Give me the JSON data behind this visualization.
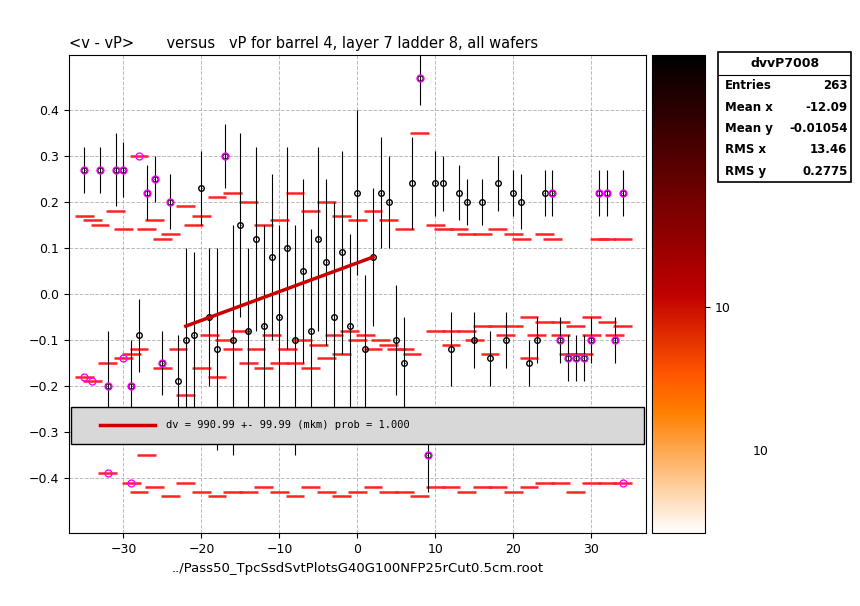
{
  "title": "<v - vP>       versus   vP for barrel 4, layer 7 ladder 8, all wafers",
  "xlabel": "../Pass50_TpcSsdSvtPlotsG40G100NFP25rCut0.5cm.root",
  "stats_title": "dvvP7008",
  "stats": {
    "Entries": "263",
    "Mean x": "-12.09",
    "Mean y": "-0.01054",
    "RMS x": "13.46",
    "RMS y": "0.2775"
  },
  "legend_text": "dv = 990.99 +- 99.99 (mkm) prob = 1.000",
  "xlim": [
    -37,
    37
  ],
  "ylim": [
    -0.52,
    0.52
  ],
  "yticks": [
    -0.4,
    -0.3,
    -0.2,
    -0.1,
    0.0,
    0.1,
    0.2,
    0.3,
    0.4
  ],
  "xticks": [
    -30,
    -20,
    -10,
    0,
    10,
    20,
    30
  ],
  "fit_x": [
    -22,
    2
  ],
  "fit_y": [
    -0.07,
    0.08
  ],
  "bg_color": "#ffffff",
  "plot_bg_color": "#ffffff",
  "legend_bg_color": "#d8d8d8",
  "grid_color": "#aaaaaa",
  "error_color_red": "#ff2222",
  "fit_line_color": "#cc0000",
  "points": [
    [
      -35,
      0.27,
      0.05,
      0.03
    ],
    [
      -33,
      0.27,
      0.05,
      0.03
    ],
    [
      -32,
      -0.2,
      0.12,
      0.04
    ],
    [
      -31,
      0.27,
      0.08,
      0.03
    ],
    [
      -30,
      0.27,
      0.06,
      0.03
    ],
    [
      -29,
      -0.2,
      0.1,
      0.04
    ],
    [
      -28,
      -0.09,
      0.08,
      0.04
    ],
    [
      -27,
      0.22,
      0.06,
      0.03
    ],
    [
      -26,
      0.25,
      0.05,
      0.03
    ],
    [
      -25,
      -0.15,
      0.07,
      0.04
    ],
    [
      -24,
      0.2,
      0.06,
      0.03
    ],
    [
      -23,
      -0.19,
      0.1,
      0.04
    ],
    [
      -22,
      -0.1,
      0.2,
      0.05
    ],
    [
      -21,
      -0.09,
      0.18,
      0.05
    ],
    [
      -20,
      0.23,
      0.08,
      0.04
    ],
    [
      -19,
      -0.05,
      0.15,
      0.04
    ],
    [
      -18,
      -0.12,
      0.22,
      0.05
    ],
    [
      -17,
      0.3,
      0.07,
      0.03
    ],
    [
      -16,
      -0.1,
      0.25,
      0.05
    ],
    [
      -15,
      0.15,
      0.2,
      0.05
    ],
    [
      -14,
      -0.08,
      0.18,
      0.05
    ],
    [
      -13,
      0.12,
      0.2,
      0.04
    ],
    [
      -12,
      -0.07,
      0.22,
      0.05
    ],
    [
      -11,
      0.08,
      0.18,
      0.04
    ],
    [
      -10,
      -0.05,
      0.2,
      0.04
    ],
    [
      -9,
      0.1,
      0.22,
      0.05
    ],
    [
      -8,
      -0.1,
      0.25,
      0.05
    ],
    [
      -7,
      0.05,
      0.2,
      0.04
    ],
    [
      -6,
      -0.08,
      0.22,
      0.05
    ],
    [
      -5,
      0.12,
      0.2,
      0.04
    ],
    [
      -4,
      0.07,
      0.18,
      0.04
    ],
    [
      -3,
      -0.05,
      0.25,
      0.05
    ],
    [
      -2,
      0.09,
      0.22,
      0.04
    ],
    [
      -1,
      -0.07,
      0.2,
      0.04
    ],
    [
      0,
      0.22,
      0.18,
      0.04
    ],
    [
      1,
      -0.12,
      0.16,
      0.04
    ],
    [
      2,
      0.08,
      0.15,
      0.04
    ],
    [
      3,
      0.22,
      0.12,
      0.04
    ],
    [
      4,
      0.2,
      0.1,
      0.04
    ],
    [
      5,
      -0.1,
      0.12,
      0.04
    ],
    [
      6,
      -0.15,
      0.1,
      0.04
    ],
    [
      7,
      0.24,
      0.1,
      0.04
    ],
    [
      8,
      0.47,
      0.06,
      0.03
    ],
    [
      9,
      -0.35,
      0.08,
      0.04
    ],
    [
      10,
      0.24,
      0.07,
      0.03
    ],
    [
      11,
      0.24,
      0.06,
      0.03
    ],
    [
      12,
      -0.12,
      0.08,
      0.04
    ],
    [
      13,
      0.22,
      0.06,
      0.03
    ],
    [
      14,
      0.2,
      0.05,
      0.03
    ],
    [
      15,
      -0.1,
      0.06,
      0.04
    ],
    [
      16,
      0.2,
      0.05,
      0.03
    ],
    [
      17,
      -0.14,
      0.06,
      0.04
    ],
    [
      18,
      0.24,
      0.06,
      0.03
    ],
    [
      19,
      -0.1,
      0.06,
      0.04
    ],
    [
      20,
      0.22,
      0.05,
      0.03
    ],
    [
      21,
      0.2,
      0.06,
      0.03
    ],
    [
      22,
      -0.15,
      0.05,
      0.04
    ],
    [
      23,
      -0.1,
      0.05,
      0.04
    ],
    [
      24,
      0.22,
      0.05,
      0.03
    ],
    [
      25,
      0.22,
      0.05,
      0.03
    ],
    [
      26,
      -0.1,
      0.05,
      0.04
    ],
    [
      27,
      -0.14,
      0.05,
      0.04
    ],
    [
      28,
      -0.14,
      0.05,
      0.04
    ],
    [
      29,
      -0.14,
      0.05,
      0.04
    ],
    [
      30,
      -0.1,
      0.05,
      0.04
    ],
    [
      31,
      0.22,
      0.05,
      0.03
    ],
    [
      32,
      0.22,
      0.05,
      0.03
    ],
    [
      33,
      -0.1,
      0.05,
      0.04
    ],
    [
      34,
      0.22,
      0.05,
      0.03
    ]
  ],
  "red_scatter": [
    [
      -35,
      0.17
    ],
    [
      -34,
      0.16
    ],
    [
      -33,
      0.15
    ],
    [
      -32,
      -0.15
    ],
    [
      -31,
      0.18
    ],
    [
      -30,
      0.14
    ],
    [
      -29,
      -0.13
    ],
    [
      -28,
      0.3
    ],
    [
      -27,
      0.14
    ],
    [
      -26,
      0.16
    ],
    [
      -25,
      -0.16
    ],
    [
      -24,
      0.13
    ],
    [
      -23,
      -0.12
    ],
    [
      -22,
      0.19
    ],
    [
      -21,
      0.15
    ],
    [
      -20,
      0.17
    ],
    [
      -19,
      -0.09
    ],
    [
      -18,
      0.21
    ],
    [
      -17,
      -0.1
    ],
    [
      -16,
      0.22
    ],
    [
      -15,
      -0.08
    ],
    [
      -14,
      0.2
    ],
    [
      -13,
      -0.12
    ],
    [
      -12,
      0.15
    ],
    [
      -11,
      -0.09
    ],
    [
      -10,
      0.16
    ],
    [
      -9,
      -0.12
    ],
    [
      -8,
      0.22
    ],
    [
      -7,
      -0.1
    ],
    [
      -6,
      0.18
    ],
    [
      -5,
      -0.11
    ],
    [
      -4,
      0.2
    ],
    [
      -3,
      -0.09
    ],
    [
      -2,
      0.17
    ],
    [
      -1,
      -0.08
    ],
    [
      0,
      0.16
    ],
    [
      1,
      -0.09
    ],
    [
      2,
      0.18
    ],
    [
      3,
      -0.1
    ],
    [
      4,
      0.16
    ],
    [
      5,
      -0.12
    ],
    [
      6,
      0.14
    ],
    [
      7,
      -0.13
    ],
    [
      8,
      0.35
    ],
    [
      9,
      -0.3
    ],
    [
      10,
      0.15
    ],
    [
      11,
      0.14
    ],
    [
      12,
      -0.11
    ],
    [
      13,
      0.14
    ],
    [
      14,
      0.13
    ],
    [
      15,
      -0.1
    ],
    [
      16,
      0.13
    ],
    [
      17,
      -0.13
    ],
    [
      18,
      0.14
    ],
    [
      19,
      -0.09
    ],
    [
      20,
      0.13
    ],
    [
      21,
      0.12
    ],
    [
      22,
      -0.14
    ],
    [
      23,
      -0.09
    ],
    [
      24,
      0.13
    ],
    [
      25,
      0.12
    ],
    [
      26,
      -0.09
    ],
    [
      27,
      -0.13
    ],
    [
      28,
      -0.13
    ],
    [
      29,
      -0.13
    ],
    [
      30,
      -0.09
    ],
    [
      31,
      0.12
    ],
    [
      32,
      0.12
    ],
    [
      33,
      -0.09
    ],
    [
      34,
      0.12
    ],
    [
      -35,
      -0.18
    ],
    [
      -34,
      -0.19
    ],
    [
      -30,
      -0.14
    ],
    [
      -28,
      -0.12
    ],
    [
      -25,
      0.12
    ],
    [
      -22,
      -0.22
    ],
    [
      -20,
      -0.16
    ],
    [
      -18,
      -0.18
    ],
    [
      -16,
      -0.12
    ],
    [
      -14,
      -0.15
    ],
    [
      -12,
      -0.16
    ],
    [
      -10,
      -0.15
    ],
    [
      -8,
      -0.15
    ],
    [
      -6,
      -0.16
    ],
    [
      -4,
      -0.14
    ],
    [
      -2,
      -0.13
    ],
    [
      0,
      -0.1
    ],
    [
      2,
      -0.12
    ],
    [
      4,
      -0.11
    ],
    [
      6,
      -0.12
    ],
    [
      8,
      -0.25
    ],
    [
      10,
      -0.08
    ],
    [
      12,
      -0.08
    ],
    [
      14,
      -0.08
    ],
    [
      16,
      -0.07
    ],
    [
      18,
      -0.07
    ],
    [
      20,
      -0.07
    ],
    [
      22,
      -0.05
    ],
    [
      24,
      -0.06
    ],
    [
      26,
      -0.06
    ],
    [
      28,
      -0.07
    ],
    [
      30,
      -0.05
    ],
    [
      32,
      -0.06
    ],
    [
      34,
      -0.07
    ],
    [
      -32,
      -0.39
    ],
    [
      -29,
      -0.41
    ],
    [
      -28,
      -0.43
    ],
    [
      -27,
      -0.35
    ],
    [
      -26,
      -0.42
    ],
    [
      -24,
      -0.44
    ],
    [
      -22,
      -0.41
    ],
    [
      -20,
      -0.43
    ],
    [
      -18,
      -0.44
    ],
    [
      -16,
      -0.43
    ],
    [
      -14,
      -0.43
    ],
    [
      -12,
      -0.42
    ],
    [
      -10,
      -0.43
    ],
    [
      -8,
      -0.44
    ],
    [
      -6,
      -0.42
    ],
    [
      -4,
      -0.43
    ],
    [
      -2,
      -0.44
    ],
    [
      0,
      -0.43
    ],
    [
      2,
      -0.42
    ],
    [
      4,
      -0.43
    ],
    [
      6,
      -0.43
    ],
    [
      8,
      -0.44
    ],
    [
      10,
      -0.42
    ],
    [
      12,
      -0.42
    ],
    [
      14,
      -0.43
    ],
    [
      16,
      -0.42
    ],
    [
      18,
      -0.42
    ],
    [
      20,
      -0.43
    ],
    [
      22,
      -0.42
    ],
    [
      24,
      -0.41
    ],
    [
      26,
      -0.41
    ],
    [
      28,
      -0.43
    ],
    [
      30,
      -0.41
    ],
    [
      32,
      -0.41
    ],
    [
      34,
      -0.41
    ]
  ],
  "pink_pts": [
    [
      -35,
      0.27
    ],
    [
      -33,
      0.27
    ],
    [
      -32,
      -0.2
    ],
    [
      -31,
      0.27
    ],
    [
      -30,
      0.27
    ],
    [
      -29,
      -0.2
    ],
    [
      -27,
      0.22
    ],
    [
      -26,
      0.25
    ],
    [
      -25,
      -0.15
    ],
    [
      -24,
      0.2
    ],
    [
      8,
      0.47
    ],
    [
      -35,
      -0.18
    ],
    [
      -34,
      -0.19
    ],
    [
      30,
      -0.1
    ],
    [
      31,
      0.22
    ],
    [
      32,
      0.22
    ],
    [
      33,
      -0.1
    ],
    [
      34,
      0.22
    ],
    [
      -30,
      -0.14
    ],
    [
      -32,
      -0.39
    ],
    [
      -29,
      -0.41
    ],
    [
      9,
      -0.35
    ],
    [
      -28,
      0.3
    ],
    [
      34,
      -0.41
    ],
    [
      25,
      0.22
    ],
    [
      26,
      -0.1
    ],
    [
      27,
      -0.14
    ],
    [
      28,
      -0.14
    ],
    [
      29,
      -0.14
    ],
    [
      -17,
      0.3
    ]
  ]
}
